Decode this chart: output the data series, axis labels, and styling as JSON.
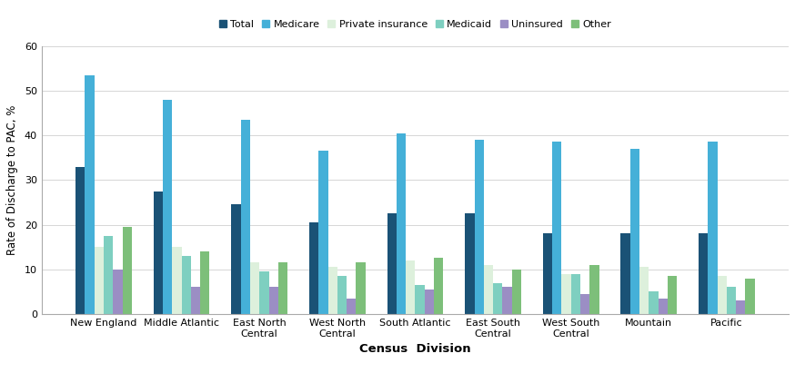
{
  "categories": [
    "New England",
    "Middle Atlantic",
    "East North\nCentral",
    "West North\nCentral",
    "South Atlantic",
    "East South\nCentral",
    "West South\nCentral",
    "Mountain",
    "Pacific"
  ],
  "series": {
    "Total": [
      33,
      27.5,
      24.5,
      20.5,
      22.5,
      22.5,
      18,
      18,
      18
    ],
    "Medicare": [
      53.5,
      48,
      43.5,
      36.5,
      40.5,
      39,
      38.5,
      37,
      38.5
    ],
    "Private insurance": [
      15,
      15,
      11.5,
      10.5,
      12,
      11,
      9,
      10.5,
      8.5
    ],
    "Medicaid": [
      17.5,
      13,
      9.5,
      8.5,
      6.5,
      7,
      9,
      5,
      6
    ],
    "Uninsured": [
      10,
      6,
      6,
      3.5,
      5.5,
      6,
      4.5,
      3.5,
      3
    ],
    "Other": [
      19.5,
      14,
      11.5,
      11.5,
      12.5,
      10,
      11,
      8.5,
      8
    ]
  },
  "colors": {
    "Total": "#1a5276",
    "Medicare": "#45b0d8",
    "Private insurance": "#ddf0dc",
    "Medicaid": "#7ecfc0",
    "Uninsured": "#9b8ec4",
    "Other": "#7dbf7a"
  },
  "ylabel": "Rate of Discharge to PAC, %",
  "xlabel": "Census  Division",
  "ylim": [
    0,
    60
  ],
  "yticks": [
    0,
    10,
    20,
    30,
    40,
    50,
    60
  ],
  "legend_order": [
    "Total",
    "Medicare",
    "Private insurance",
    "Medicaid",
    "Uninsured",
    "Other"
  ],
  "bar_width": 0.12,
  "background_color": "#ffffff"
}
